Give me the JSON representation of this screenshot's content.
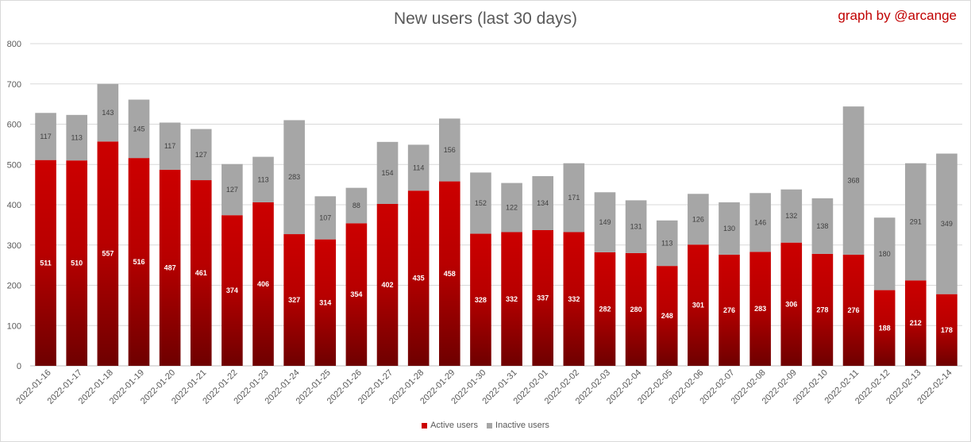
{
  "header": {
    "title": "New users (last 30 days)",
    "credit": "graph by @arcange"
  },
  "colors": {
    "active_top": "#cc0000",
    "active_bottom": "#6e0000",
    "inactive": "#a6a6a6",
    "grid": "#d9d9d9"
  },
  "chart_data": {
    "type": "bar",
    "stacked": true,
    "title": "New users (last 30 days)",
    "xlabel": "",
    "ylabel": "",
    "ylim": [
      0,
      800
    ],
    "yticks": [
      0,
      100,
      200,
      300,
      400,
      500,
      600,
      700,
      800
    ],
    "grid": true,
    "legend_position": "bottom-center",
    "categories": [
      "2022-01-16",
      "2022-01-17",
      "2022-01-18",
      "2022-01-19",
      "2022-01-20",
      "2022-01-21",
      "2022-01-22",
      "2022-01-23",
      "2022-01-24",
      "2022-01-25",
      "2022-01-26",
      "2022-01-27",
      "2022-01-28",
      "2022-01-29",
      "2022-01-30",
      "2022-01-31",
      "2022-02-01",
      "2022-02-02",
      "2022-02-03",
      "2022-02-04",
      "2022-02-05",
      "2022-02-06",
      "2022-02-07",
      "2022-02-08",
      "2022-02-09",
      "2022-02-10",
      "2022-02-11",
      "2022-02-12",
      "2022-02-13",
      "2022-02-14"
    ],
    "series": [
      {
        "name": "Active users",
        "values": [
          511,
          510,
          557,
          516,
          487,
          461,
          374,
          406,
          327,
          314,
          354,
          402,
          435,
          458,
          328,
          332,
          337,
          332,
          282,
          280,
          248,
          301,
          276,
          283,
          306,
          278,
          276,
          188,
          212,
          178
        ]
      },
      {
        "name": "Inactive users",
        "values": [
          117,
          113,
          143,
          145,
          117,
          127,
          127,
          113,
          283,
          107,
          88,
          154,
          114,
          156,
          152,
          122,
          134,
          171,
          149,
          131,
          113,
          126,
          130,
          146,
          132,
          138,
          368,
          180,
          291,
          349
        ]
      }
    ]
  }
}
